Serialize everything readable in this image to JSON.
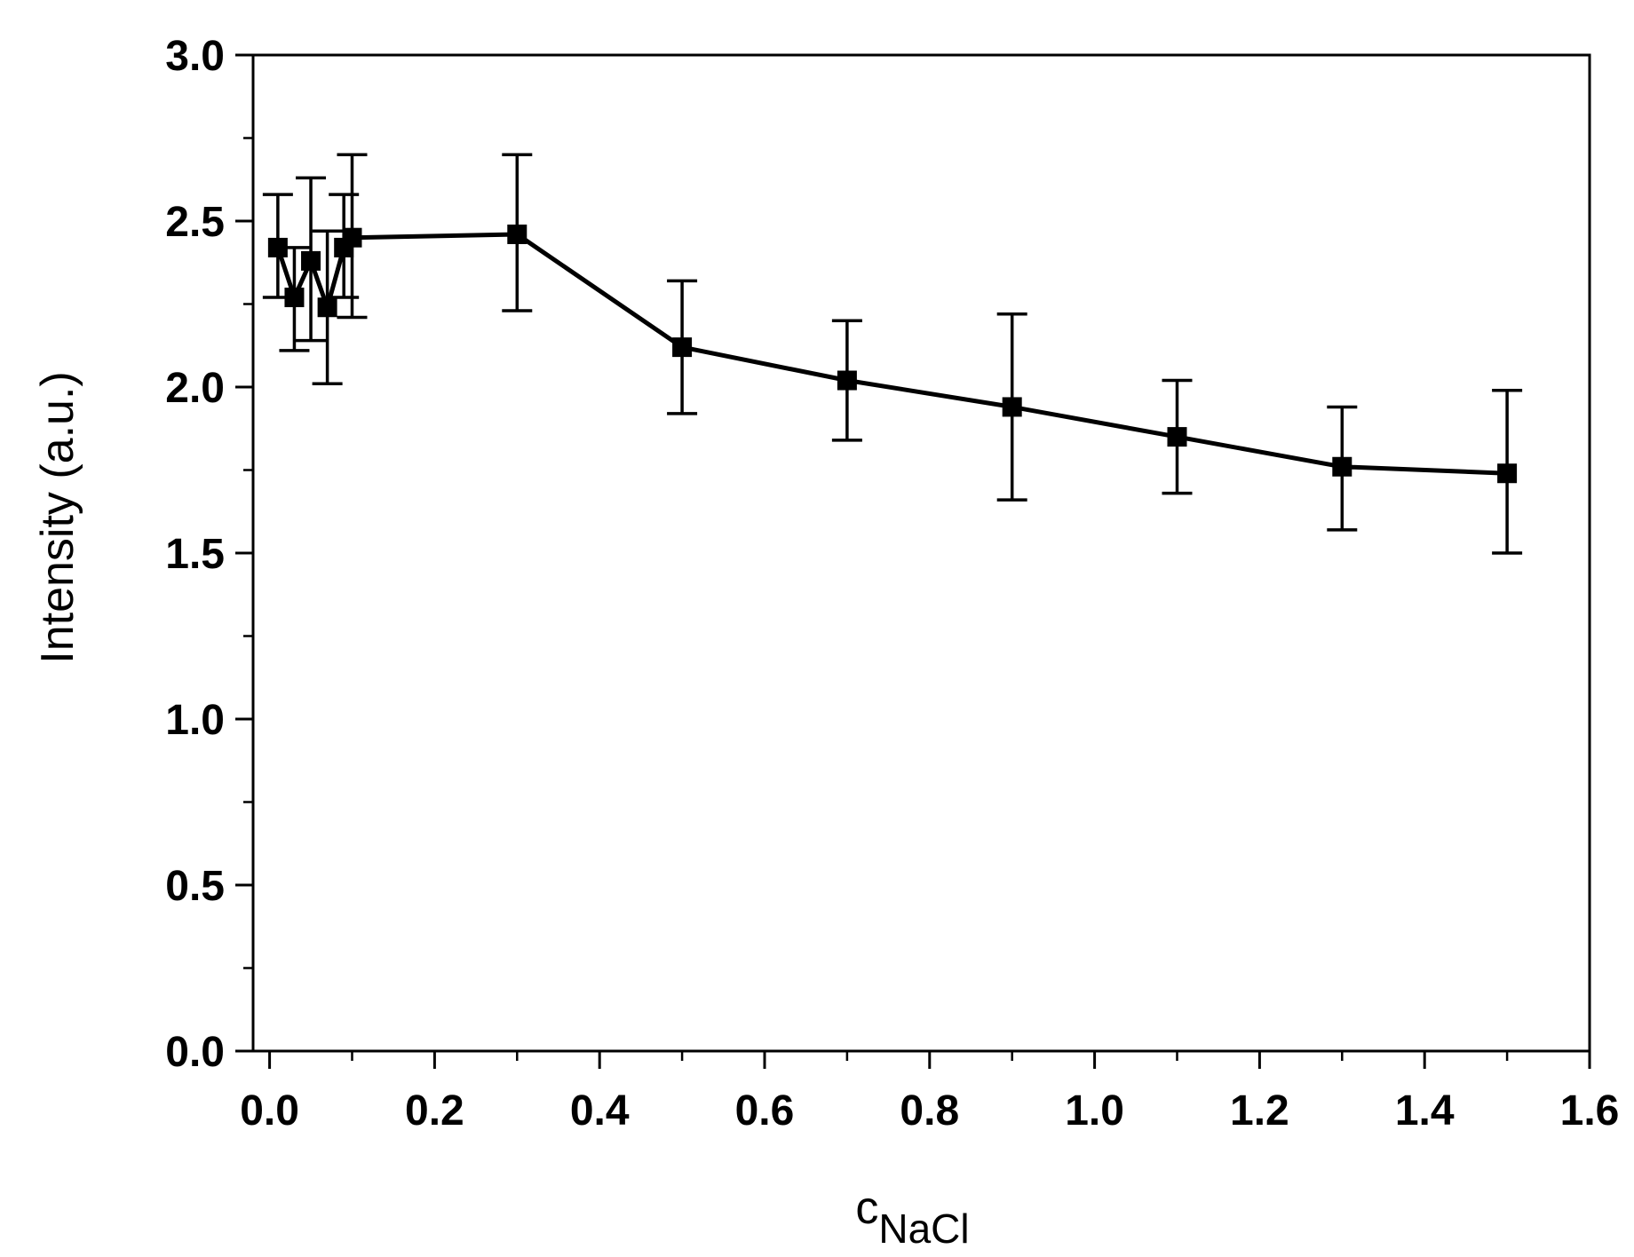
{
  "chart_data": {
    "type": "line",
    "title": "",
    "xlabel_main": "c",
    "xlabel_sub": "NaCl",
    "ylabel": "Intensity (a.u.)",
    "xlim": [
      -0.02,
      1.6
    ],
    "ylim": [
      0.0,
      3.0
    ],
    "x_ticks": [
      0.0,
      0.2,
      0.4,
      0.6,
      0.8,
      1.0,
      1.2,
      1.4,
      1.6
    ],
    "x_tick_labels": [
      "0.0",
      "0.2",
      "0.4",
      "0.6",
      "0.8",
      "1.0",
      "1.2",
      "1.4",
      "1.6"
    ],
    "y_ticks": [
      0.0,
      0.5,
      1.0,
      1.5,
      2.0,
      2.5,
      3.0
    ],
    "y_tick_labels": [
      "0.0",
      "0.5",
      "1.0",
      "1.5",
      "2.0",
      "2.5",
      "3.0"
    ],
    "y_minor_step": 0.25,
    "x_minor_step": 0.1,
    "grid": false,
    "series": [
      {
        "name": "Intensity",
        "marker": "square",
        "color": "#000000",
        "points": [
          {
            "x": 0.01,
            "y": 2.42,
            "err_low": 2.27,
            "err_high": 2.58
          },
          {
            "x": 0.03,
            "y": 2.27,
            "err_low": 2.11,
            "err_high": 2.42
          },
          {
            "x": 0.05,
            "y": 2.38,
            "err_low": 2.14,
            "err_high": 2.63
          },
          {
            "x": 0.07,
            "y": 2.24,
            "err_low": 2.01,
            "err_high": 2.47
          },
          {
            "x": 0.09,
            "y": 2.42,
            "err_low": 2.27,
            "err_high": 2.58
          },
          {
            "x": 0.1,
            "y": 2.45,
            "err_low": 2.21,
            "err_high": 2.7
          },
          {
            "x": 0.3,
            "y": 2.46,
            "err_low": 2.23,
            "err_high": 2.7
          },
          {
            "x": 0.5,
            "y": 2.12,
            "err_low": 1.92,
            "err_high": 2.32
          },
          {
            "x": 0.7,
            "y": 2.02,
            "err_low": 1.84,
            "err_high": 2.2
          },
          {
            "x": 0.9,
            "y": 1.94,
            "err_low": 1.66,
            "err_high": 2.22
          },
          {
            "x": 1.1,
            "y": 1.85,
            "err_low": 1.68,
            "err_high": 2.02
          },
          {
            "x": 1.3,
            "y": 1.76,
            "err_low": 1.57,
            "err_high": 1.94
          },
          {
            "x": 1.5,
            "y": 1.74,
            "err_low": 1.5,
            "err_high": 1.99
          }
        ]
      }
    ]
  }
}
